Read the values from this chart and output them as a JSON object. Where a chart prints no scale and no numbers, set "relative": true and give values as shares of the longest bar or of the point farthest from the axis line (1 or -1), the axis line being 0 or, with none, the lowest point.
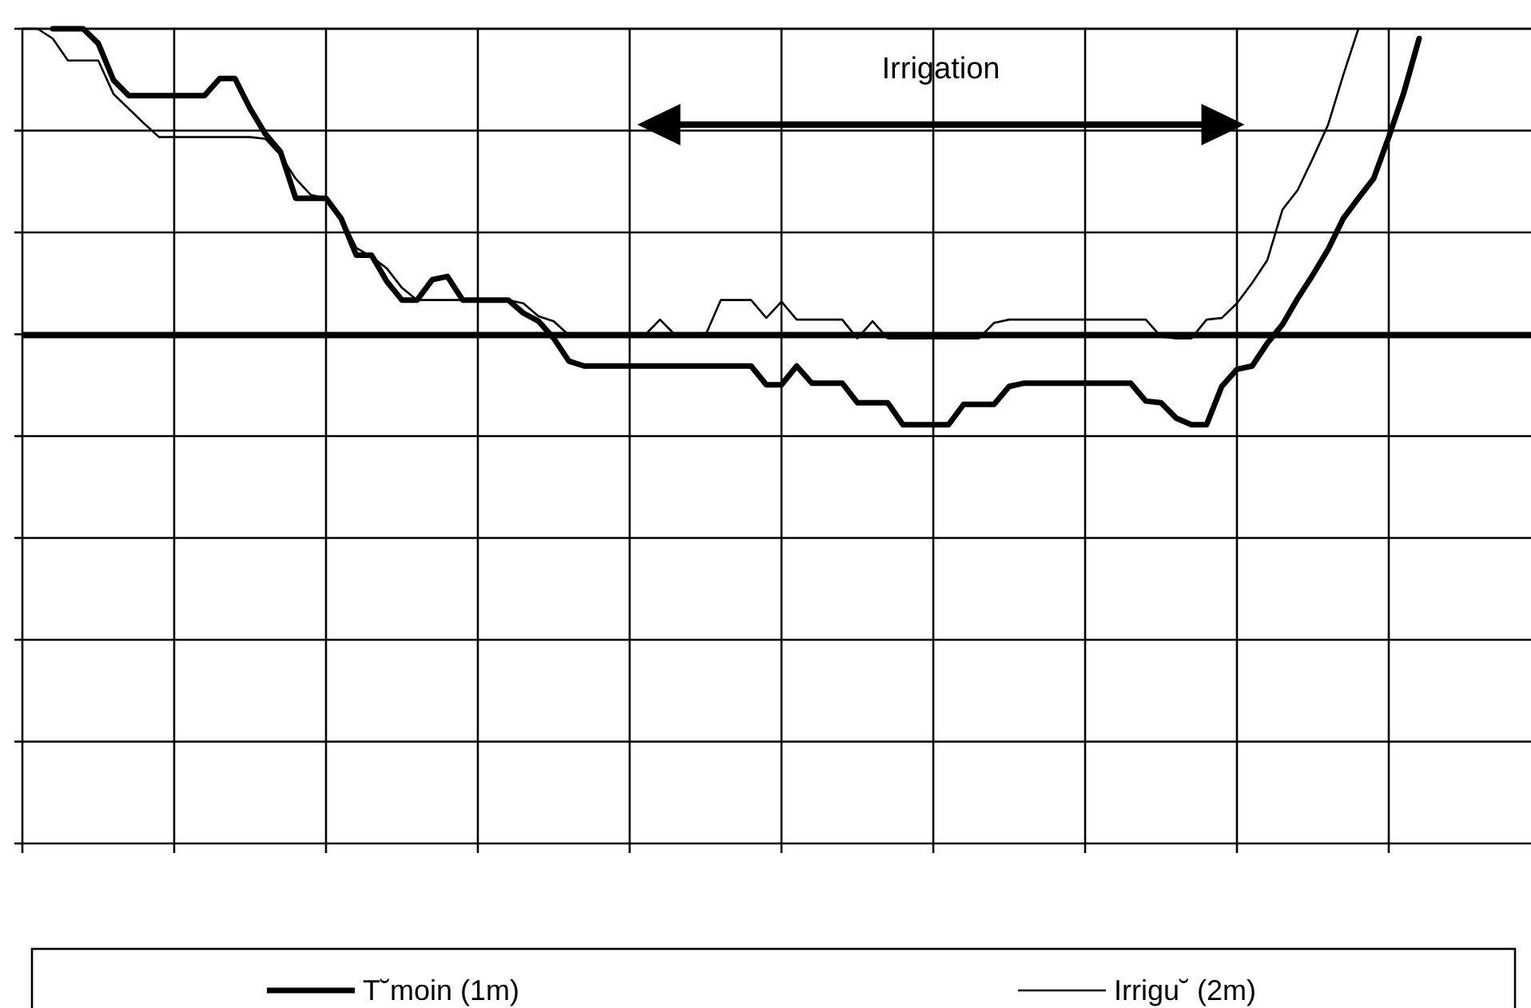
{
  "chart_data": {
    "type": "line",
    "relative": true,
    "grid": true,
    "legend": "bottom",
    "marker": "none",
    "line_style": "solid",
    "categories": [
      null,
      null,
      null,
      null,
      null,
      null,
      null,
      null,
      null,
      null,
      null,
      null,
      null,
      null,
      null,
      null,
      null,
      null,
      null,
      null,
      null,
      null,
      null,
      null,
      null,
      null,
      null,
      null,
      null,
      null,
      null,
      null,
      null,
      null,
      null,
      null,
      null,
      null,
      null,
      null,
      null,
      null,
      null,
      null,
      null,
      null,
      null,
      null,
      null,
      null,
      null,
      null,
      null,
      null,
      null,
      null,
      null,
      null,
      null,
      null,
      null,
      null,
      null,
      null,
      null,
      null,
      null,
      null,
      null,
      null,
      null,
      null,
      null,
      null,
      null,
      null,
      null,
      null,
      null,
      null,
      null,
      null,
      null,
      null,
      null,
      null,
      null,
      null,
      null,
      null,
      null,
      null,
      null,
      null,
      null,
      null,
      null,
      null,
      null,
      null
    ],
    "series": [
      {
        "name": "T˘moin (1m)",
        "color": "#000000",
        "values": [
          null,
          null,
          1,
          1,
          1,
          0.982,
          0.937,
          0.918,
          0.918,
          0.918,
          0.918,
          0.918,
          0.918,
          0.939,
          0.939,
          0.902,
          0.871,
          0.849,
          0.792,
          0.792,
          0.792,
          0.767,
          0.722,
          0.722,
          0.69,
          0.667,
          0.667,
          0.692,
          0.696,
          0.667,
          0.667,
          0.667,
          0.667,
          0.651,
          0.641,
          0.62,
          0.592,
          0.586,
          0.586,
          0.586,
          0.586,
          0.586,
          0.586,
          0.586,
          0.586,
          0.586,
          0.586,
          0.586,
          0.586,
          0.563,
          0.563,
          0.586,
          0.565,
          0.565,
          0.565,
          0.541,
          0.541,
          0.541,
          0.514,
          0.514,
          0.514,
          0.514,
          0.539,
          0.539,
          0.539,
          0.561,
          0.565,
          0.565,
          0.565,
          0.565,
          0.565,
          0.565,
          0.565,
          0.565,
          0.543,
          0.541,
          0.522,
          0.514,
          0.514,
          0.561,
          0.582,
          0.586,
          0.614,
          0.637,
          0.669,
          0.698,
          0.729,
          0.767,
          0.792,
          0.816,
          0.867,
          0.922,
          0.988,
          null,
          null,
          null,
          null,
          null,
          null,
          null
        ]
      },
      {
        "name": "Irrigu˘ (2m)",
        "color": "#000000",
        "values": [
          1,
          1,
          0.988,
          0.961,
          0.961,
          0.961,
          0.92,
          0.902,
          0.884,
          0.867,
          0.867,
          0.867,
          0.867,
          0.867,
          0.867,
          0.867,
          0.865,
          0.845,
          0.816,
          0.796,
          0.792,
          0.769,
          0.731,
          0.72,
          0.706,
          0.682,
          0.667,
          0.667,
          0.667,
          0.667,
          0.667,
          0.667,
          0.667,
          0.663,
          0.647,
          0.641,
          0.624,
          0.624,
          0.624,
          0.624,
          0.624,
          0.624,
          0.643,
          0.624,
          0.624,
          0.624,
          0.667,
          0.667,
          0.667,
          0.645,
          0.665,
          0.643,
          0.643,
          0.643,
          0.643,
          0.62,
          0.641,
          0.62,
          0.62,
          0.62,
          0.62,
          0.62,
          0.62,
          0.62,
          0.639,
          0.643,
          0.643,
          0.643,
          0.643,
          0.643,
          0.643,
          0.643,
          0.643,
          0.643,
          0.643,
          0.622,
          0.62,
          0.62,
          0.643,
          0.645,
          0.663,
          0.688,
          0.716,
          0.778,
          0.802,
          0.841,
          0.882,
          0.943,
          1,
          null,
          null,
          null,
          null,
          null,
          null,
          null,
          null,
          null,
          null,
          null
        ]
      }
    ],
    "ref_lines": [
      {
        "axis": "y",
        "value": 0.624,
        "color": "#000000"
      }
    ],
    "annotations": [
      "Irrigation"
    ]
  }
}
